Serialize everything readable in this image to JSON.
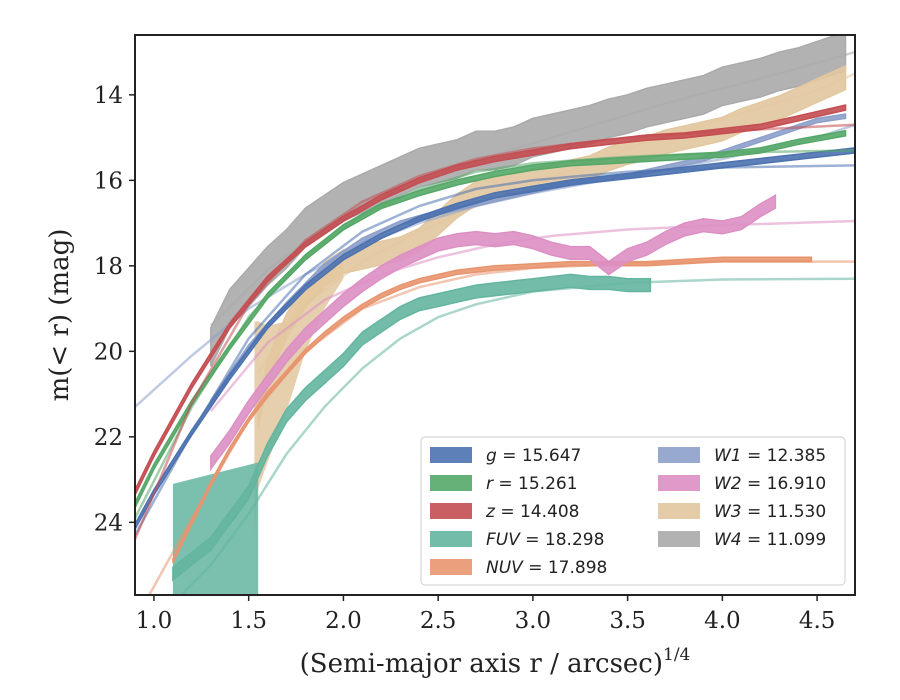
{
  "chart_data": {
    "type": "line",
    "xlabel": "(Semi-major axis r / arcsec)",
    "xlabel_exponent": "1/4",
    "ylabel": "m(< r) (mag)",
    "xlim": [
      0.9,
      4.7
    ],
    "ylim": [
      25.7,
      12.6
    ],
    "y_inverted": true,
    "xticks": [
      1.0,
      1.5,
      2.0,
      2.5,
      3.0,
      3.5,
      4.0,
      4.5
    ],
    "xtick_labels": [
      "1.0",
      "1.5",
      "2.0",
      "2.5",
      "3.0",
      "3.5",
      "4.0",
      "4.5"
    ],
    "yticks": [
      14,
      16,
      18,
      20,
      22,
      24
    ],
    "ytick_labels": [
      "14",
      "16",
      "18",
      "20",
      "22",
      "24"
    ],
    "grid": false,
    "legend_position": "lower-right",
    "legend_columns": 2,
    "series": [
      {
        "name": "g",
        "label": "g = 15.647",
        "color": "#4c72b0",
        "x": [
          0.9,
          1.0,
          1.2,
          1.4,
          1.6,
          1.8,
          2.0,
          2.2,
          2.4,
          2.6,
          2.8,
          3.0,
          3.2,
          3.4,
          3.6,
          3.8,
          4.0,
          4.2,
          4.4,
          4.7
        ],
        "y": [
          24.1,
          23.3,
          21.9,
          20.6,
          19.4,
          18.5,
          17.8,
          17.3,
          16.9,
          16.6,
          16.35,
          16.2,
          16.05,
          15.95,
          15.85,
          15.75,
          15.65,
          15.55,
          15.45,
          15.3
        ],
        "width": 0.12,
        "model": {
          "x": [
            0.9,
            1.2,
            1.5,
            1.8,
            2.1,
            2.4,
            2.7,
            3.0,
            3.5,
            4.0,
            4.7
          ],
          "y": [
            24.3,
            21.9,
            19.7,
            18.2,
            17.2,
            16.6,
            16.2,
            16.0,
            15.8,
            15.7,
            15.65
          ]
        }
      },
      {
        "name": "r",
        "label": "r = 15.261",
        "color": "#55a868",
        "x": [
          0.9,
          1.0,
          1.2,
          1.4,
          1.6,
          1.8,
          2.0,
          2.2,
          2.4,
          2.6,
          2.8,
          3.0,
          3.2,
          3.4,
          3.6,
          3.8,
          4.0,
          4.2,
          4.4,
          4.65
        ],
        "y": [
          23.6,
          22.7,
          21.2,
          19.9,
          18.7,
          17.8,
          17.1,
          16.6,
          16.3,
          16.05,
          15.85,
          15.7,
          15.6,
          15.55,
          15.5,
          15.45,
          15.4,
          15.3,
          15.1,
          14.9
        ],
        "width": 0.12,
        "model": {
          "x": [
            0.9,
            1.2,
            1.5,
            1.8,
            2.1,
            2.4,
            2.7,
            3.0,
            3.5,
            4.0,
            4.7
          ],
          "y": [
            23.9,
            21.3,
            19.2,
            17.8,
            16.8,
            16.2,
            15.8,
            15.6,
            15.45,
            15.35,
            15.3
          ]
        }
      },
      {
        "name": "z",
        "label": "z = 14.408",
        "color": "#c44e52",
        "x": [
          0.9,
          1.0,
          1.2,
          1.4,
          1.6,
          1.8,
          2.0,
          2.2,
          2.4,
          2.6,
          2.8,
          3.0,
          3.2,
          3.4,
          3.6,
          3.8,
          4.0,
          4.2,
          4.4,
          4.65
        ],
        "y": [
          23.3,
          22.4,
          20.8,
          19.4,
          18.3,
          17.5,
          16.9,
          16.4,
          16.0,
          15.7,
          15.5,
          15.35,
          15.2,
          15.1,
          15.0,
          14.95,
          14.85,
          14.75,
          14.55,
          14.3
        ],
        "width": 0.12,
        "model": {
          "x": [
            0.9,
            1.2,
            1.5,
            1.8,
            2.1,
            2.4,
            2.7,
            3.0,
            3.5,
            4.0,
            4.7
          ],
          "y": [
            24.4,
            21.2,
            18.9,
            17.4,
            16.5,
            15.9,
            15.5,
            15.25,
            15.0,
            14.85,
            14.7
          ]
        }
      },
      {
        "name": "FUV",
        "label": "FUV = 18.298",
        "color": "#64b5a0",
        "x": [
          1.1,
          1.3,
          1.5,
          1.6,
          1.7,
          1.8,
          1.9,
          2.0,
          2.1,
          2.2,
          2.3,
          2.4,
          2.5,
          2.6,
          2.7,
          2.8,
          2.9,
          3.0,
          3.1,
          3.2,
          3.3,
          3.4,
          3.5,
          3.62
        ],
        "y": [
          25.2,
          24.5,
          23.3,
          22.3,
          21.5,
          21.0,
          20.6,
          20.2,
          19.7,
          19.4,
          19.1,
          18.9,
          18.8,
          18.7,
          18.6,
          18.55,
          18.5,
          18.45,
          18.4,
          18.35,
          18.4,
          18.4,
          18.45,
          18.45
        ],
        "width": 0.3,
        "band_start": {
          "x": [
            1.1,
            1.55
          ],
          "top": [
            23.1,
            22.6
          ],
          "bottom": [
            25.7,
            25.7
          ]
        },
        "model": {
          "x": [
            1.1,
            1.3,
            1.5,
            1.7,
            1.9,
            2.1,
            2.3,
            2.5,
            2.7,
            3.0,
            3.5,
            4.0,
            4.7
          ],
          "y": [
            25.9,
            25.0,
            23.8,
            22.4,
            21.3,
            20.4,
            19.7,
            19.2,
            18.9,
            18.6,
            18.4,
            18.32,
            18.3
          ]
        }
      },
      {
        "name": "NUV",
        "label": "NUV = 17.898",
        "color": "#e8956f",
        "x": [
          1.1,
          1.2,
          1.3,
          1.4,
          1.5,
          1.6,
          1.7,
          1.8,
          1.9,
          2.0,
          2.1,
          2.2,
          2.3,
          2.4,
          2.5,
          2.6,
          2.8,
          3.0,
          3.2,
          3.4,
          3.6,
          3.8,
          4.0,
          4.2,
          4.47
        ],
        "y": [
          24.9,
          24.0,
          23.1,
          22.3,
          21.6,
          21.0,
          20.5,
          20.0,
          19.6,
          19.25,
          18.95,
          18.7,
          18.5,
          18.35,
          18.25,
          18.15,
          18.05,
          18.0,
          17.95,
          17.95,
          17.95,
          17.9,
          17.85,
          17.85,
          17.85
        ],
        "width": 0.1,
        "model": {
          "x": [
            0.95,
            1.2,
            1.5,
            1.8,
            2.1,
            2.4,
            2.7,
            3.0,
            3.5,
            4.0,
            4.7
          ],
          "y": [
            25.9,
            23.9,
            21.6,
            20.0,
            19.0,
            18.5,
            18.2,
            18.05,
            17.95,
            17.9,
            17.9
          ]
        }
      },
      {
        "name": "W1",
        "label": "W1 = 12.385",
        "color": "#8da0cb",
        "x": [
          1.3,
          1.5,
          1.7,
          1.9,
          2.1,
          2.3,
          2.5,
          2.7,
          2.9,
          3.1,
          3.3,
          3.5,
          3.7,
          3.9,
          4.1,
          4.3,
          4.5,
          4.65
        ],
        "y": [
          21.2,
          19.9,
          18.9,
          18.0,
          17.4,
          17.0,
          16.75,
          16.55,
          16.35,
          16.15,
          16.0,
          15.9,
          15.7,
          15.5,
          15.2,
          14.9,
          14.6,
          14.5
        ],
        "width": 0.1,
        "model": {
          "x": [
            0.9,
            1.2,
            1.5,
            1.8,
            2.1,
            2.4,
            2.7,
            3.0,
            3.5,
            4.0,
            4.5,
            4.7
          ],
          "y": [
            21.3,
            20.1,
            19.0,
            18.2,
            17.5,
            17.0,
            16.6,
            16.3,
            15.9,
            15.5,
            15.0,
            14.7
          ]
        }
      },
      {
        "name": "W2",
        "label": "W2 = 16.910",
        "color": "#dd8fc4",
        "x": [
          1.3,
          1.4,
          1.5,
          1.6,
          1.7,
          1.8,
          1.9,
          2.0,
          2.1,
          2.2,
          2.3,
          2.4,
          2.5,
          2.6,
          2.7,
          2.8,
          2.9,
          3.0,
          3.1,
          3.2,
          3.3,
          3.4,
          3.5,
          3.6,
          3.7,
          3.8,
          3.9,
          4.0,
          4.1,
          4.2,
          4.28
        ],
        "y": [
          22.6,
          22.0,
          21.3,
          20.7,
          20.1,
          19.6,
          19.2,
          18.8,
          18.45,
          18.15,
          17.9,
          17.7,
          17.5,
          17.4,
          17.35,
          17.4,
          17.35,
          17.45,
          17.6,
          17.7,
          17.7,
          18.05,
          17.75,
          17.6,
          17.35,
          17.15,
          17.05,
          17.1,
          17.0,
          16.7,
          16.5
        ],
        "width": 0.3,
        "model": {
          "x": [
            1.3,
            1.6,
            1.9,
            2.2,
            2.5,
            2.8,
            3.1,
            3.5,
            4.0,
            4.7
          ],
          "y": [
            21.4,
            19.8,
            18.8,
            18.2,
            17.8,
            17.5,
            17.3,
            17.15,
            17.05,
            16.95
          ]
        }
      },
      {
        "name": "W3",
        "label": "W3 = 11.530",
        "color": "#e2c79f",
        "x": [
          1.55,
          1.6,
          1.65,
          1.7,
          1.8,
          1.9,
          2.0,
          2.1,
          2.2,
          2.3,
          2.4,
          2.5,
          2.6,
          2.7,
          2.8,
          2.9,
          3.0,
          3.1,
          3.2,
          3.3,
          3.4,
          3.5,
          3.6,
          3.7,
          3.8,
          3.9,
          4.0,
          4.1,
          4.2,
          4.3,
          4.4,
          4.5,
          4.6,
          4.65
        ],
        "y": [
          21.5,
          20.5,
          19.9,
          19.4,
          18.7,
          18.2,
          17.9,
          17.8,
          17.7,
          17.6,
          17.4,
          17.0,
          16.6,
          16.3,
          16.2,
          16.1,
          16.0,
          15.9,
          15.8,
          15.7,
          15.5,
          15.35,
          15.25,
          15.1,
          15.0,
          14.9,
          14.8,
          14.6,
          14.45,
          14.3,
          14.1,
          13.9,
          13.7,
          13.6
        ],
        "width": 0.55,
        "band_start": {
          "x": [
            1.53,
            1.55,
            1.6,
            1.7,
            1.8,
            1.9,
            2.0
          ],
          "top": [
            19.3,
            19.3,
            19.4,
            19.3,
            18.6,
            18.1,
            17.8
          ],
          "bottom": [
            24.4,
            23.2,
            22.6,
            21.4,
            20.0,
            19.0,
            18.3
          ]
        },
        "model": {
          "x": [
            1.55,
            1.8,
            2.1,
            2.4,
            2.7,
            3.0,
            3.3,
            3.6,
            3.9,
            4.2,
            4.5,
            4.7
          ],
          "y": [
            20.5,
            18.9,
            17.9,
            17.2,
            16.6,
            16.1,
            15.6,
            15.1,
            14.7,
            14.3,
            13.9,
            13.5
          ]
        }
      },
      {
        "name": "W4",
        "label": "W4 = 11.099",
        "color": "#aaaaaa",
        "x": [
          1.3,
          1.4,
          1.5,
          1.6,
          1.7,
          1.8,
          1.9,
          2.0,
          2.1,
          2.2,
          2.3,
          2.4,
          2.5,
          2.6,
          2.7,
          2.8,
          2.9,
          3.0,
          3.1,
          3.2,
          3.3,
          3.4,
          3.5,
          3.6,
          3.7,
          3.8,
          3.9,
          4.0,
          4.1,
          4.2,
          4.3,
          4.4,
          4.5,
          4.6,
          4.65
        ],
        "y": [
          19.9,
          19.0,
          18.5,
          18.0,
          17.6,
          17.1,
          16.8,
          16.5,
          16.3,
          16.1,
          15.9,
          15.7,
          15.6,
          15.5,
          15.3,
          15.3,
          15.2,
          15.0,
          14.9,
          14.8,
          14.7,
          14.55,
          14.45,
          14.3,
          14.2,
          14.1,
          14.0,
          13.8,
          13.7,
          13.6,
          13.45,
          13.35,
          13.2,
          13.05,
          13.0
        ],
        "width": 0.9,
        "band_start": {
          "x": [
            1.3,
            1.3
          ],
          "top": [
            18.55,
            18.55
          ],
          "bottom": [
            21.9,
            21.9
          ]
        },
        "model": {
          "x": [
            1.3,
            1.6,
            1.9,
            2.2,
            2.5,
            2.8,
            3.1,
            3.4,
            3.7,
            4.0,
            4.3,
            4.7
          ],
          "y": [
            19.4,
            18.1,
            17.1,
            16.3,
            15.8,
            15.4,
            15.0,
            14.6,
            14.2,
            13.85,
            13.5,
            13.0
          ]
        }
      }
    ]
  }
}
